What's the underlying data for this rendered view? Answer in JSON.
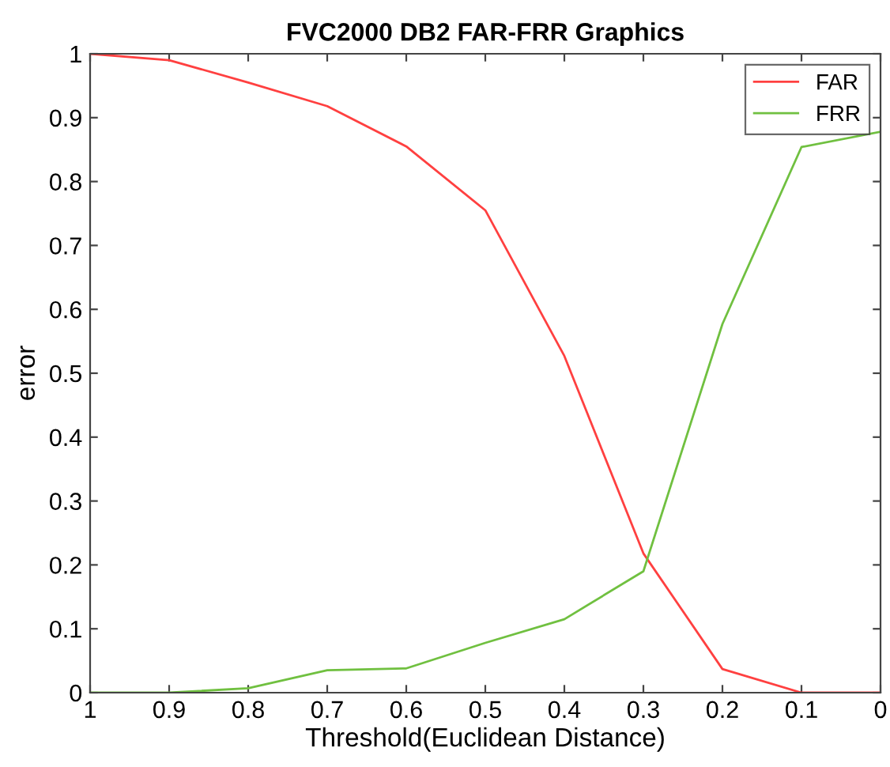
{
  "chart_data": {
    "type": "line",
    "title": "FVC2000 DB2 FAR-FRR Graphics",
    "xlabel": "Threshold(Euclidean Distance)",
    "ylabel": "error",
    "x": [
      1,
      0.9,
      0.8,
      0.7,
      0.6,
      0.5,
      0.4,
      0.3,
      0.2,
      0.1,
      0
    ],
    "series": [
      {
        "name": "FAR",
        "color": "#ff4040",
        "values": [
          1.0,
          0.99,
          0.955,
          0.918,
          0.855,
          0.755,
          0.527,
          0.218,
          0.037,
          0,
          0
        ]
      },
      {
        "name": "FRR",
        "color": "#70c040",
        "values": [
          0,
          0,
          0.007,
          0.035,
          0.038,
          0.078,
          0.115,
          0.19,
          0.577,
          0.854,
          0.878
        ]
      }
    ],
    "xlim": [
      1,
      0
    ],
    "xticks": [
      1,
      0.9,
      0.8,
      0.7,
      0.6,
      0.5,
      0.4,
      0.3,
      0.2,
      0.1,
      0
    ],
    "ylim": [
      0,
      1
    ],
    "yticks": [
      0,
      0.1,
      0.2,
      0.3,
      0.4,
      0.5,
      0.6,
      0.7,
      0.8,
      0.9,
      1
    ],
    "grid": false,
    "legend": "top right",
    "marker": "none",
    "line_style": "solid"
  }
}
